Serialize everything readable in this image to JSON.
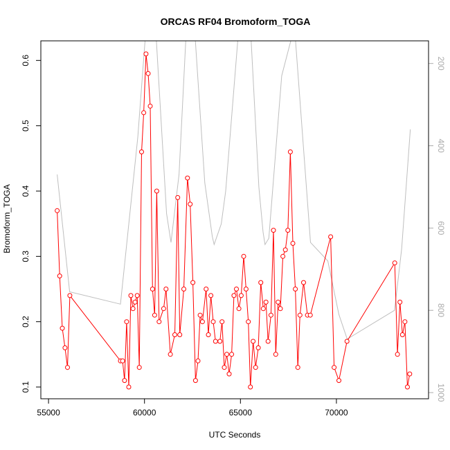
{
  "chart_data": {
    "type": "line",
    "title": "ORCAS RF04 Bromoform_TOGA",
    "xlabel": "UTC Seconds",
    "ylabel": "Bromoform_TOGA",
    "xlim": [
      54600,
      74800
    ],
    "ylim": [
      0.082,
      0.63
    ],
    "x_ticks": [
      55000,
      60000,
      65000,
      70000
    ],
    "y_ticks": [
      0.1,
      0.2,
      0.3,
      0.4,
      0.5,
      0.6
    ],
    "y2lim": [
      1015,
      145
    ],
    "y2_ticks": [
      200,
      400,
      600,
      800,
      1000
    ],
    "grid": false,
    "legend": "none",
    "colors": {
      "series": "#ff0000",
      "secondary": "#bebebe",
      "axis": "#000000",
      "y2_tick": "#aaaaaa"
    },
    "series": [
      {
        "style": "line-points",
        "x": [
          55450,
          55580,
          55720,
          55860,
          55990,
          56110,
          58750,
          58860,
          58960,
          59070,
          59180,
          59290,
          59400,
          59510,
          59620,
          59730,
          59850,
          59960,
          60080,
          60190,
          60300,
          60420,
          60530,
          60640,
          60760,
          61000,
          61120,
          61350,
          61580,
          61730,
          61840,
          62050,
          62240,
          62380,
          62520,
          62660,
          62790,
          62900,
          63020,
          63210,
          63330,
          63460,
          63580,
          63700,
          63930,
          64040,
          64160,
          64290,
          64410,
          64540,
          64660,
          64790,
          64920,
          65040,
          65170,
          65290,
          65410,
          65520,
          65660,
          65790,
          65930,
          66060,
          66190,
          66330,
          66440,
          66590,
          66720,
          66840,
          66960,
          67080,
          67210,
          67340,
          67470,
          67600,
          67730,
          67860,
          67990,
          68100,
          68290,
          68490,
          68640,
          69700,
          69880,
          70130,
          70550,
          73040,
          73180,
          73310,
          73440,
          73570,
          73700,
          73820
        ],
        "y": [
          0.37,
          0.27,
          0.19,
          0.16,
          0.13,
          0.24,
          0.14,
          0.14,
          0.11,
          0.2,
          0.1,
          0.24,
          0.22,
          0.23,
          0.24,
          0.13,
          0.46,
          0.52,
          0.61,
          0.58,
          0.53,
          0.25,
          0.21,
          0.4,
          0.2,
          0.22,
          0.25,
          0.15,
          0.18,
          0.39,
          0.18,
          0.25,
          0.42,
          0.38,
          0.26,
          0.11,
          0.14,
          0.21,
          0.2,
          0.25,
          0.18,
          0.24,
          0.2,
          0.17,
          0.17,
          0.2,
          0.13,
          0.15,
          0.12,
          0.15,
          0.24,
          0.25,
          0.22,
          0.24,
          0.3,
          0.25,
          0.2,
          0.1,
          0.17,
          0.13,
          0.16,
          0.26,
          0.22,
          0.23,
          0.17,
          0.21,
          0.34,
          0.15,
          0.23,
          0.22,
          0.3,
          0.31,
          0.34,
          0.46,
          0.32,
          0.25,
          0.13,
          0.21,
          0.26,
          0.21,
          0.21,
          0.33,
          0.13,
          0.11,
          0.17,
          0.29,
          0.15,
          0.23,
          0.18,
          0.2,
          0.1,
          0.12
        ]
      },
      {
        "style": "line",
        "axis": "right",
        "x": [
          55450,
          56100,
          58750,
          59650,
          60030,
          60620,
          61150,
          61380,
          61800,
          62150,
          62650,
          63140,
          63530,
          63630,
          64000,
          64230,
          64860,
          65560,
          65960,
          66180,
          66280,
          66480,
          67150,
          67620,
          67870,
          68650,
          69550,
          70130,
          70560,
          73030,
          73400,
          73850
        ],
        "y": [
          470,
          755,
          785,
          380,
          50,
          60,
          565,
          635,
          470,
          50,
          50,
          490,
          620,
          640,
          590,
          510,
          50,
          50,
          500,
          610,
          640,
          625,
          230,
          50,
          50,
          635,
          680,
          810,
          870,
          800,
          650,
          360
        ]
      }
    ]
  }
}
